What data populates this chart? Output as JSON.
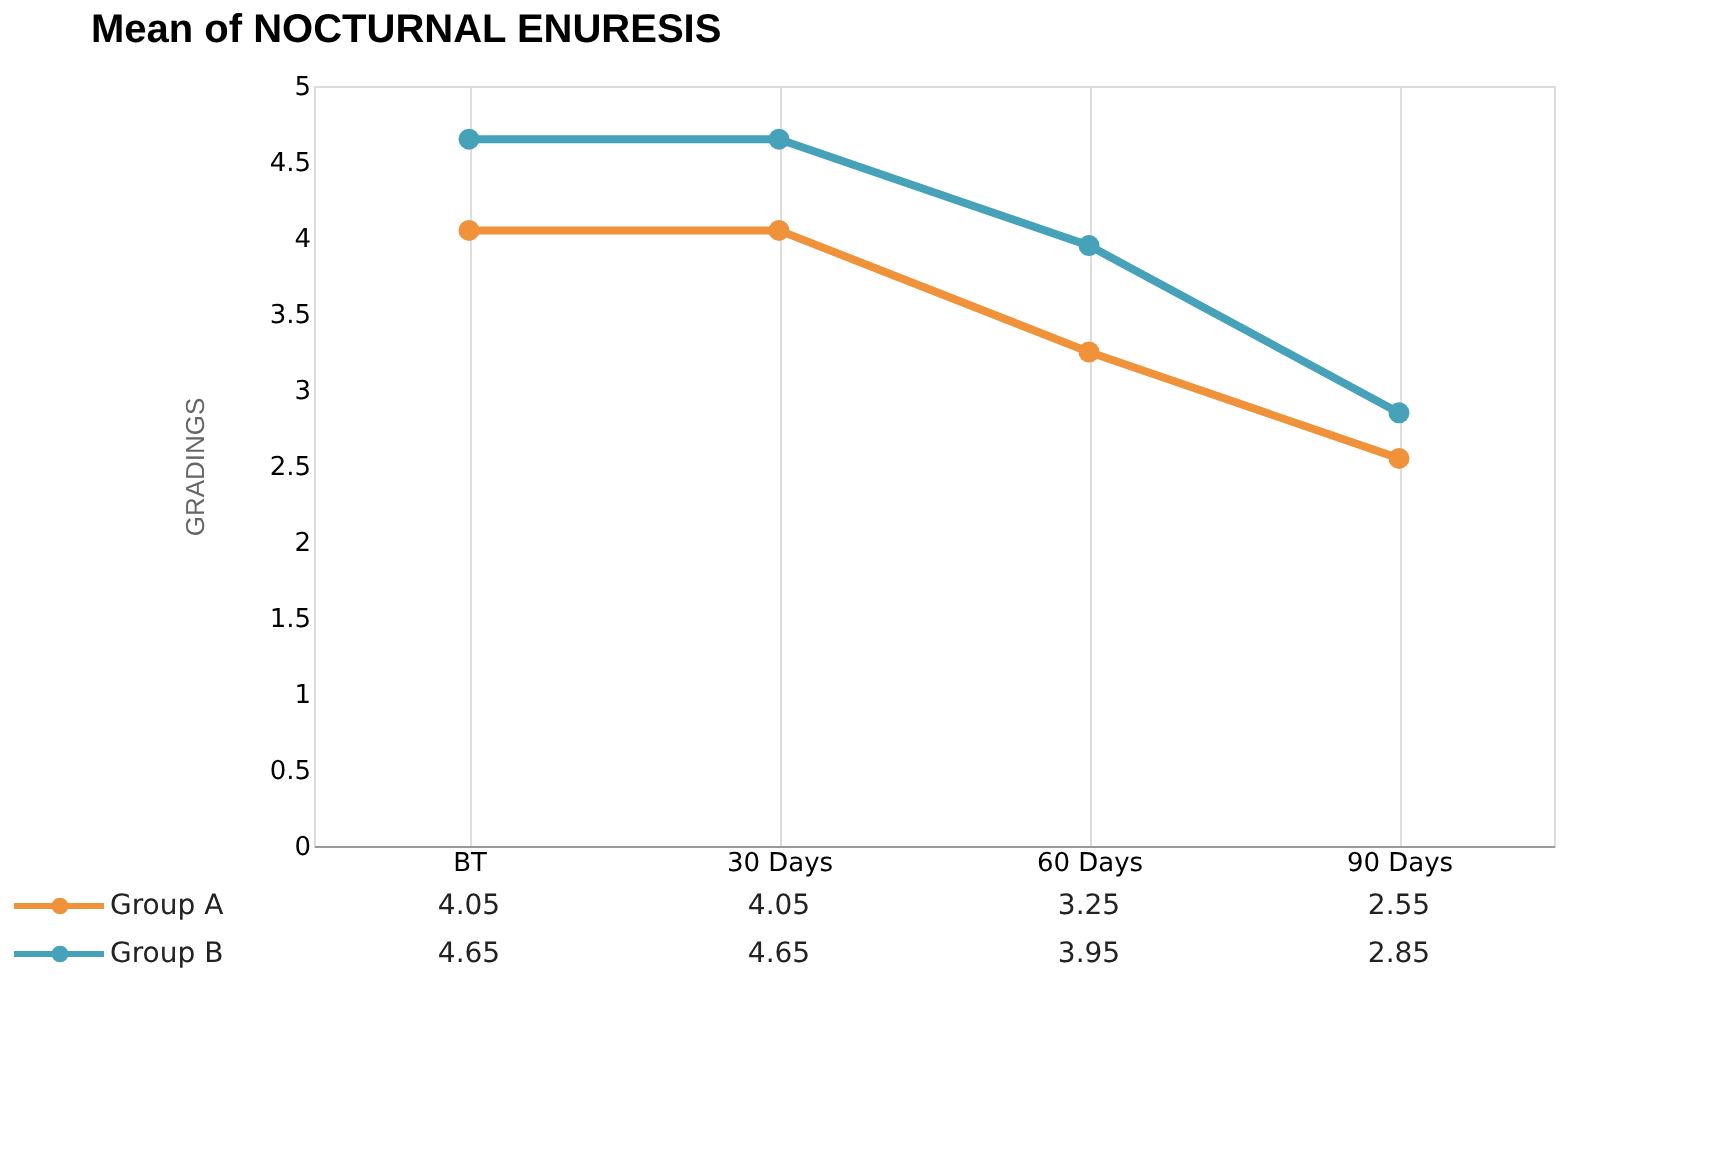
{
  "chart_data": {
    "type": "line",
    "title": "Mean of NOCTURNAL ENURESIS",
    "ylabel": "GRADINGS",
    "categories": [
      "BT",
      "30 Days",
      "60 Days",
      "90 Days"
    ],
    "series": [
      {
        "name": "Group A",
        "color": "#f0923a",
        "values": [
          4.05,
          4.05,
          3.25,
          2.55
        ]
      },
      {
        "name": "Group B",
        "color": "#45a2b8",
        "values": [
          4.65,
          4.65,
          3.95,
          2.85
        ]
      }
    ],
    "ylim": [
      0,
      5
    ],
    "yticks": [
      0,
      0.5,
      1,
      1.5,
      2,
      2.5,
      3,
      3.5,
      4,
      4.5,
      5
    ],
    "grid": "x",
    "legend": "bottom left",
    "marker": "circle",
    "line_style": "solid",
    "data_labels": true
  }
}
